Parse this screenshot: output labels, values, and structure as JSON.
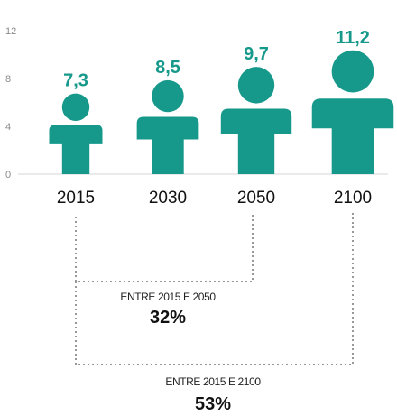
{
  "chart_data": {
    "type": "bar",
    "categories": [
      "2015",
      "2030",
      "2050",
      "2100"
    ],
    "values": [
      7.3,
      8.5,
      9.7,
      11.2
    ],
    "value_labels": [
      "7,3",
      "8,5",
      "9,7",
      "11,2"
    ],
    "y_ticks": [
      "0",
      "4",
      "8",
      "12"
    ],
    "ylim": [
      0,
      12
    ],
    "grid": false,
    "mark_color": "#16998a",
    "comparisons": [
      {
        "caption": "ENTRE 2015 E 2050",
        "percent": "32%"
      },
      {
        "caption": "ENTRE 2015 E 2100",
        "percent": "53%"
      }
    ]
  }
}
